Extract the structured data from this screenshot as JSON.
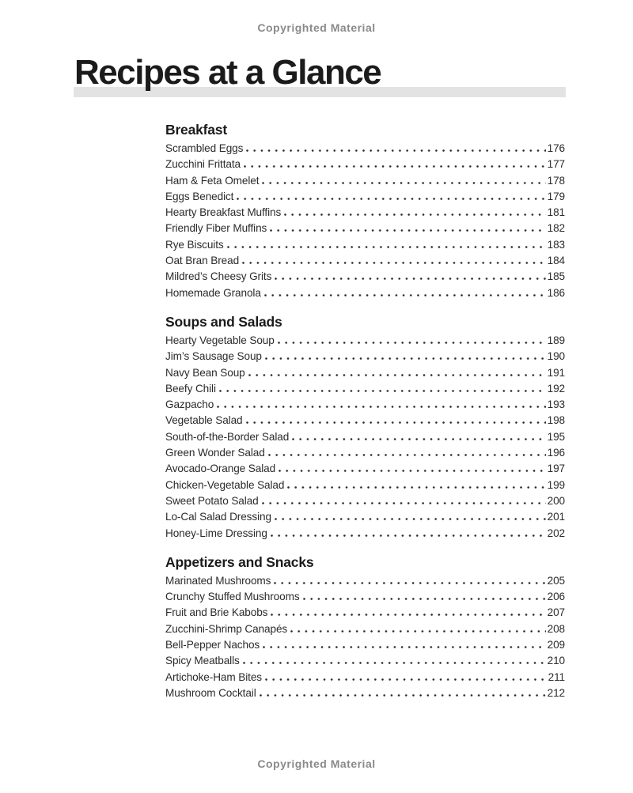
{
  "notices": {
    "top": "Copyrighted Material",
    "bottom": "Copyrighted Material"
  },
  "title": "Recipes at a Glance",
  "colors": {
    "text": "#2b2b2b",
    "heading": "#1b1b1b",
    "notice_gray": "#8a8a8a",
    "title_bar_gray": "#e3e3e3",
    "dot_leader": "#2b2b2b",
    "background": "#ffffff"
  },
  "sections": [
    {
      "heading": "Breakfast",
      "entries": [
        {
          "name": "Scrambled Eggs",
          "page": "176"
        },
        {
          "name": "Zucchini Frittata",
          "page": "177"
        },
        {
          "name": "Ham & Feta Omelet",
          "page": "178"
        },
        {
          "name": "Eggs Benedict",
          "page": "179"
        },
        {
          "name": "Hearty Breakfast Muffins",
          "page": "181"
        },
        {
          "name": "Friendly Fiber Muffins",
          "page": "182"
        },
        {
          "name": "Rye Biscuits",
          "page": "183"
        },
        {
          "name": "Oat Bran Bread",
          "page": "184"
        },
        {
          "name": "Mildred’s Cheesy Grits",
          "page": "185"
        },
        {
          "name": "Homemade Granola",
          "page": "186"
        }
      ]
    },
    {
      "heading": "Soups and Salads",
      "entries": [
        {
          "name": "Hearty Vegetable Soup",
          "page": "189"
        },
        {
          "name": "Jim’s Sausage Soup",
          "page": "190"
        },
        {
          "name": "Navy Bean Soup",
          "page": "191"
        },
        {
          "name": "Beefy Chili",
          "page": "192"
        },
        {
          "name": "Gazpacho",
          "page": "193"
        },
        {
          "name": "Vegetable Salad",
          "page": "198"
        },
        {
          "name": "South-of-the-Border Salad",
          "page": "195"
        },
        {
          "name": "Green Wonder Salad",
          "page": "196"
        },
        {
          "name": "Avocado-Orange Salad",
          "page": "197"
        },
        {
          "name": "Chicken-Vegetable Salad",
          "page": "199"
        },
        {
          "name": "Sweet Potato Salad",
          "page": "200"
        },
        {
          "name": "Lo-Cal Salad Dressing",
          "page": "201"
        },
        {
          "name": "Honey-Lime Dressing",
          "page": "202"
        }
      ]
    },
    {
      "heading": "Appetizers and Snacks",
      "entries": [
        {
          "name": "Marinated Mushrooms",
          "page": "205"
        },
        {
          "name": "Crunchy Stuffed Mushrooms",
          "page": "206"
        },
        {
          "name": "Fruit and Brie Kabobs",
          "page": "207"
        },
        {
          "name": "Zucchini-Shrimp Canapés",
          "page": "208"
        },
        {
          "name": "Bell-Pepper Nachos",
          "page": "209"
        },
        {
          "name": "Spicy Meatballs",
          "page": "210"
        },
        {
          "name": "Artichoke-Ham Bites",
          "page": "211"
        },
        {
          "name": "Mushroom Cocktail",
          "page": "212"
        }
      ]
    }
  ]
}
